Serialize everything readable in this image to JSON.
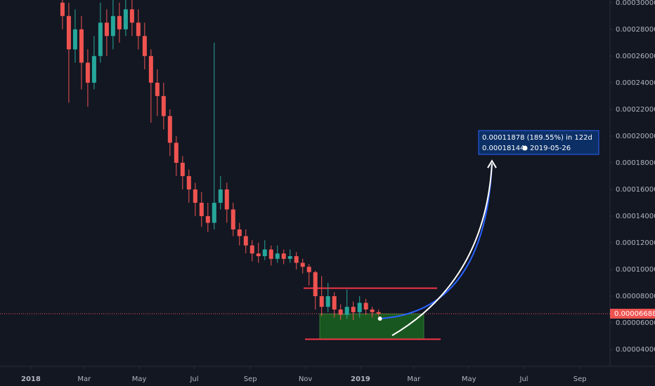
{
  "chart_data": {
    "type": "candlestick",
    "x": [
      35,
      42,
      49,
      56,
      63,
      70,
      77,
      84,
      91,
      98,
      105,
      112,
      119,
      126,
      133,
      140,
      147,
      154,
      161,
      168,
      175,
      182,
      189,
      196,
      203,
      210,
      217,
      224,
      231,
      238,
      245,
      252,
      259,
      266,
      273,
      280,
      287,
      294,
      301,
      308,
      315,
      322,
      329,
      336,
      343,
      350,
      357,
      364,
      371,
      378,
      385
    ],
    "open": [
      0.0003,
      0.00029,
      0.000265,
      0.00028,
      0.000255,
      0.00024,
      0.00026,
      0.000285,
      0.000275,
      0.00029,
      0.00028,
      0.000295,
      0.000285,
      0.000275,
      0.00026,
      0.00024,
      0.00023,
      0.000215,
      0.000195,
      0.00018,
      0.00017,
      0.00016,
      0.00015,
      0.00014,
      0.000135,
      0.00015,
      0.00016,
      0.000145,
      0.00013,
      0.000125,
      0.000118,
      0.000112,
      0.00011,
      0.000115,
      0.000108,
      0.000112,
      0.000108,
      0.00011,
      0.000105,
      0.000102,
      9.8e-05,
      8e-05,
      7.2e-05,
      8e-05,
      7e-05,
      6.6e-05,
      7.2e-05,
      6.8e-05,
      7.5e-05,
      7e-05,
      6.8e-05
    ],
    "high": [
      0.00032,
      0.0003,
      0.000295,
      0.00029,
      0.000265,
      0.000275,
      0.0003,
      0.000295,
      0.000305,
      0.0003,
      0.00031,
      0.000305,
      0.000295,
      0.000285,
      0.000265,
      0.00025,
      0.00024,
      0.00022,
      0.0002,
      0.000185,
      0.000175,
      0.000165,
      0.000158,
      0.00015,
      0.00027,
      0.00017,
      0.000165,
      0.00015,
      0.000135,
      0.00013,
      0.000122,
      0.00012,
      0.000122,
      0.000118,
      0.000118,
      0.000115,
      0.000115,
      0.000113,
      0.000108,
      0.000104,
      9.9e-05,
      9.5e-05,
      9e-05,
      8.3e-05,
      7.4e-05,
      8.5e-05,
      7.6e-05,
      8e-05,
      7.8e-05,
      7.2e-05,
      7e-05
    ],
    "low": [
      0.00028,
      0.000225,
      0.000255,
      0.000235,
      0.000222,
      0.000235,
      0.000255,
      0.00026,
      0.000265,
      0.00027,
      0.000275,
      0.000275,
      0.000265,
      0.00025,
      0.00021,
      0.000215,
      0.000205,
      0.000185,
      0.00017,
      0.00016,
      0.00015,
      0.00014,
      0.000132,
      0.000128,
      0.00013,
      0.000145,
      0.000135,
      0.000125,
      0.000118,
      0.000112,
      0.000106,
      0.000105,
      0.000107,
      0.000103,
      0.000105,
      0.000104,
      0.000105,
      0.0001,
      9.7e-05,
      8.8e-05,
      7e-05,
      6.5e-05,
      6.8e-05,
      6.4e-05,
      6.2e-05,
      6.3e-05,
      6.2e-05,
      6.4e-05,
      6.6e-05,
      6.4e-05,
      6.5e-05
    ],
    "close": [
      0.00029,
      0.000265,
      0.00028,
      0.000255,
      0.00024,
      0.00026,
      0.000285,
      0.000275,
      0.00029,
      0.00028,
      0.000295,
      0.000285,
      0.000275,
      0.00026,
      0.00024,
      0.00023,
      0.000215,
      0.000195,
      0.00018,
      0.00017,
      0.00016,
      0.00015,
      0.00014,
      0.000135,
      0.00015,
      0.00016,
      0.000145,
      0.00013,
      0.000125,
      0.000118,
      0.000112,
      0.00011,
      0.000115,
      0.000108,
      0.000112,
      0.000108,
      0.00011,
      0.000105,
      0.000102,
      9.8e-05,
      8e-05,
      7.2e-05,
      8e-05,
      7e-05,
      6.6e-05,
      7.2e-05,
      6.8e-05,
      7.5e-05,
      7e-05,
      6.8e-05,
      6.688e-05
    ],
    "up_color": "#26a69a",
    "down_color": "#ef5350",
    "xlim": [
      -34.2,
      641.3
    ],
    "xticks": [
      {
        "value": 0,
        "label": "2018"
      },
      {
        "value": 59,
        "label": "Mar"
      },
      {
        "value": 120,
        "label": "May"
      },
      {
        "value": 181,
        "label": "Jul"
      },
      {
        "value": 243,
        "label": "Sep"
      },
      {
        "value": 304,
        "label": "Nov"
      },
      {
        "value": 365,
        "label": "2019"
      },
      {
        "value": 424,
        "label": "Mar"
      },
      {
        "value": 485,
        "label": "May"
      },
      {
        "value": 546,
        "label": "Jul"
      },
      {
        "value": 608,
        "label": "Sep"
      }
    ],
    "ylim": [
      2.74e-05,
      0.000302
    ],
    "yticks": [
      {
        "value": 4e-05,
        "label": "0.00004000"
      },
      {
        "value": 6e-05,
        "label": "0.00006000"
      },
      {
        "value": 8e-05,
        "label": "0.00008000"
      },
      {
        "value": 0.0001,
        "label": "0.00010000"
      },
      {
        "value": 0.00012,
        "label": "0.00012000"
      },
      {
        "value": 0.00014,
        "label": "0.00014000"
      },
      {
        "value": 0.00016,
        "label": "0.00016000"
      },
      {
        "value": 0.00018,
        "label": "0.00018000"
      },
      {
        "value": 0.0002,
        "label": "0.00020000"
      },
      {
        "value": 0.00022,
        "label": "0.00022000"
      },
      {
        "value": 0.00024,
        "label": "0.00024000"
      },
      {
        "value": 0.00026,
        "label": "0.00026000"
      },
      {
        "value": 0.00028,
        "label": "0.00028000"
      },
      {
        "value": 0.0003,
        "label": "0.00030000"
      }
    ],
    "last_price": 6.688e-05,
    "resistance": 8.6e-05,
    "support": 4.77e-05,
    "zone": [
      4.77e-05,
      6.67e-05
    ],
    "target": 0.00018144,
    "projection_label": "0.00011878 (189.55%) in 122d",
    "target_date": "2019-05-26"
  }
}
